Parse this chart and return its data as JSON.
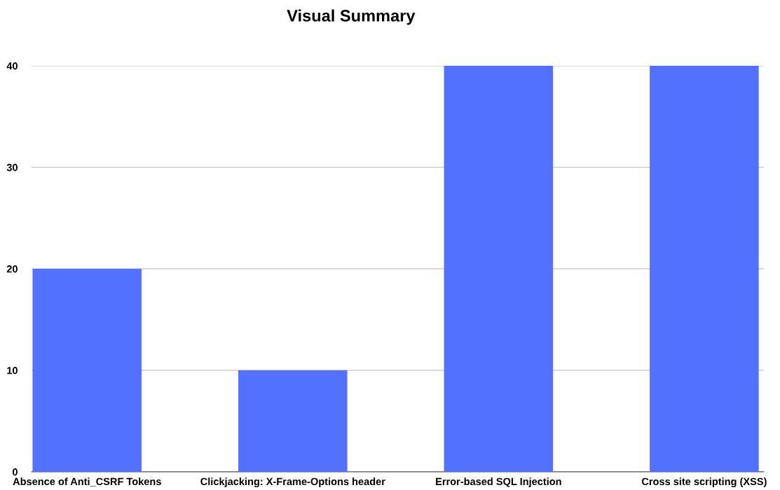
{
  "chart_data": {
    "type": "bar",
    "title": "Visual Summary",
    "categories": [
      "Absence of Anti_CSRF Tokens",
      "Clickjacking: X-Frame-Options header",
      "Error-based SQL Injection",
      "Cross site scripting (XSS)"
    ],
    "values": [
      20,
      10,
      40,
      40
    ],
    "color": "#5271ff",
    "ylim": [
      0,
      40
    ],
    "yticks": [
      0,
      10,
      20,
      30,
      40
    ],
    "grid": "y",
    "legend": false
  }
}
